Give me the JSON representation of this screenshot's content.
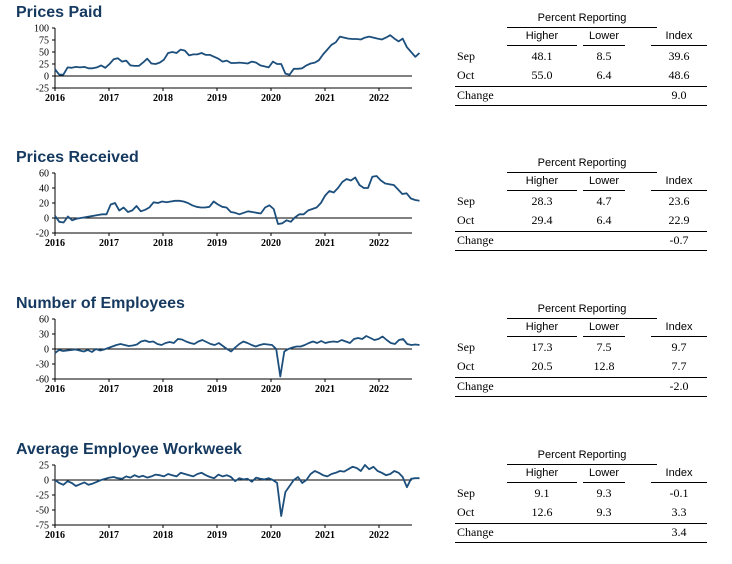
{
  "table_header": {
    "group": "Percent Reporting",
    "higher": "Higher",
    "lower": "Lower",
    "index": "Index"
  },
  "row_labels": {
    "sep": "Sep",
    "oct": "Oct",
    "change": "Change"
  },
  "colors": {
    "line": "#1d4f7c",
    "title": "#15395f"
  },
  "chart_data": [
    {
      "type": "line",
      "title": "Prices Paid",
      "x_ticks": [
        "2016",
        "2017",
        "2018",
        "2019",
        "2020",
        "2021",
        "2022"
      ],
      "y_ticks": [
        "100",
        "75",
        "50",
        "25",
        "0",
        "-25"
      ],
      "ylim": [
        -25,
        100
      ],
      "x_start": "2016-01",
      "x_end": "2022-10",
      "series": [
        {
          "values": [
            14,
            3,
            3,
            18,
            17,
            19,
            18,
            19,
            16,
            16,
            18,
            22,
            17,
            25,
            35,
            37,
            30,
            32,
            22,
            21,
            21,
            28,
            36,
            26,
            25,
            28,
            34,
            48,
            50,
            48,
            55,
            53,
            43,
            45,
            45,
            48,
            44,
            44,
            40,
            36,
            30,
            32,
            27,
            27,
            28,
            27,
            26,
            30,
            28,
            22,
            20,
            18,
            30,
            25,
            25,
            5,
            3,
            15,
            15,
            16,
            22,
            26,
            28,
            33,
            45,
            55,
            65,
            70,
            82,
            80,
            78,
            77,
            77,
            76,
            80,
            82,
            80,
            78,
            76,
            80,
            85,
            78,
            72,
            78,
            60,
            50,
            40,
            48
          ]
        }
      ],
      "table": {
        "sep": [
          "48.1",
          "8.5",
          "39.6"
        ],
        "oct": [
          "55.0",
          "6.4",
          "48.6"
        ],
        "change": "9.0"
      }
    },
    {
      "type": "line",
      "title": "Prices Received",
      "x_ticks": [
        "2016",
        "2017",
        "2018",
        "2019",
        "2020",
        "2021",
        "2022"
      ],
      "y_ticks": [
        "60",
        "40",
        "20",
        "0",
        "-20"
      ],
      "ylim": [
        -20,
        60
      ],
      "x_start": "2016-01",
      "x_end": "2022-10",
      "series": [
        {
          "values": [
            3,
            -5,
            -6,
            2,
            -3,
            -1,
            0,
            1,
            2,
            3,
            4,
            5,
            5,
            18,
            20,
            10,
            14,
            8,
            10,
            16,
            9,
            11,
            14,
            21,
            20,
            22,
            21,
            22,
            23,
            23,
            22,
            20,
            17,
            15,
            14,
            14,
            15,
            22,
            18,
            15,
            14,
            8,
            7,
            5,
            7,
            9,
            8,
            7,
            6,
            14,
            17,
            12,
            -8,
            -7,
            -3,
            -5,
            1,
            5,
            5,
            10,
            12,
            14,
            20,
            30,
            36,
            34,
            40,
            48,
            52,
            50,
            54,
            44,
            40,
            40,
            55,
            56,
            50,
            46,
            45,
            44,
            38,
            32,
            33,
            26,
            24,
            23
          ]
        }
      ],
      "table": {
        "sep": [
          "28.3",
          "4.7",
          "23.6"
        ],
        "oct": [
          "29.4",
          "6.4",
          "22.9"
        ],
        "change": "-0.7"
      }
    },
    {
      "type": "line",
      "title": "Number of Employees",
      "x_ticks": [
        "2016",
        "2017",
        "2018",
        "2019",
        "2020",
        "2021",
        "2022"
      ],
      "y_ticks": [
        "60",
        "30",
        "0",
        "-30",
        "-60"
      ],
      "ylim": [
        -60,
        60
      ],
      "x_start": "2016-01",
      "x_end": "2022-10",
      "series": [
        {
          "values": [
            -8,
            -2,
            -4,
            -3,
            -2,
            -1,
            -3,
            -5,
            -2,
            -6,
            0,
            -3,
            -1,
            2,
            5,
            8,
            10,
            8,
            6,
            7,
            9,
            15,
            17,
            14,
            15,
            10,
            8,
            12,
            14,
            12,
            20,
            19,
            15,
            12,
            10,
            15,
            18,
            14,
            10,
            8,
            12,
            6,
            0,
            -5,
            3,
            10,
            15,
            12,
            8,
            5,
            8,
            10,
            9,
            8,
            0,
            -55,
            -5,
            0,
            3,
            5,
            5,
            8,
            12,
            15,
            12,
            16,
            12,
            14,
            15,
            14,
            18,
            15,
            12,
            20,
            22,
            20,
            26,
            22,
            18,
            20,
            25,
            18,
            12,
            10,
            18,
            20,
            10,
            8,
            9,
            8
          ]
        }
      ],
      "table": {
        "sep": [
          "17.3",
          "7.5",
          "9.7"
        ],
        "oct": [
          "20.5",
          "12.8",
          "7.7"
        ],
        "change": "-2.0"
      }
    },
    {
      "type": "line",
      "title": "Average Employee Workweek",
      "x_ticks": [
        "2016",
        "2017",
        "2018",
        "2019",
        "2020",
        "2021",
        "2022"
      ],
      "y_ticks": [
        "25",
        "0",
        "-25",
        "-50",
        "-75"
      ],
      "ylim": [
        -75,
        25
      ],
      "x_start": "2016-01",
      "x_end": "2022-10",
      "series": [
        {
          "values": [
            0,
            -5,
            -8,
            -2,
            -5,
            -10,
            -7,
            -4,
            -8,
            -6,
            -3,
            0,
            2,
            4,
            5,
            3,
            2,
            6,
            4,
            8,
            5,
            7,
            4,
            6,
            9,
            8,
            6,
            10,
            8,
            6,
            12,
            10,
            8,
            6,
            10,
            12,
            8,
            5,
            3,
            9,
            6,
            8,
            5,
            -2,
            3,
            1,
            2,
            -3,
            4,
            2,
            1,
            3,
            0,
            -5,
            -60,
            -20,
            -10,
            0,
            5,
            -5,
            0,
            10,
            15,
            12,
            8,
            6,
            10,
            12,
            15,
            14,
            18,
            22,
            20,
            15,
            25,
            18,
            22,
            15,
            12,
            8,
            10,
            15,
            12,
            5,
            -12,
            2,
            3,
            3
          ]
        }
      ],
      "table": {
        "sep": [
          "9.1",
          "9.3",
          "-0.1"
        ],
        "oct": [
          "12.6",
          "9.3",
          "3.3"
        ],
        "change": "3.4"
      }
    }
  ]
}
